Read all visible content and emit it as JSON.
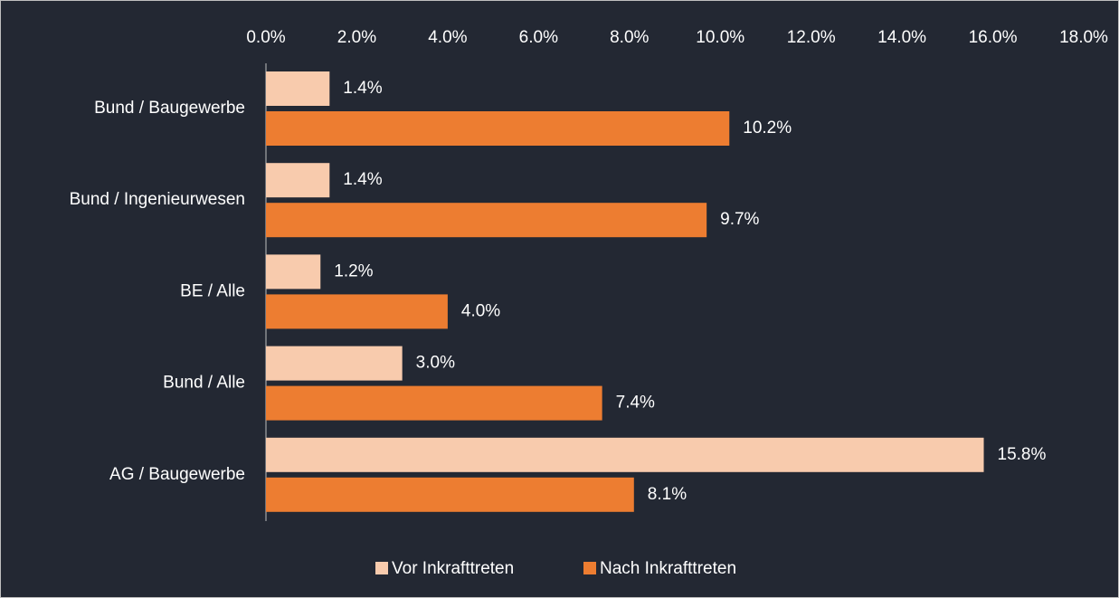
{
  "chart_data": {
    "type": "bar",
    "orientation": "horizontal",
    "categories": [
      "Bund / Baugewerbe",
      "Bund / Ingenieurwesen",
      "BE / Alle",
      "Bund / Alle",
      "AG / Baugewerbe"
    ],
    "series": [
      {
        "name": "Vor Inkrafttreten",
        "color": "#f8cbad",
        "values": [
          1.4,
          1.4,
          1.2,
          3.0,
          15.8
        ],
        "value_labels": [
          "1.4%",
          "1.4%",
          "1.2%",
          "3.0%",
          "15.8%"
        ]
      },
      {
        "name": "Nach Inkrafttreten",
        "color": "#ed7d31",
        "values": [
          10.2,
          9.7,
          4.0,
          7.4,
          8.1
        ],
        "value_labels": [
          "10.2%",
          "9.7%",
          "4.0%",
          "7.4%",
          "8.1%"
        ]
      }
    ],
    "xlim": [
      0,
      18
    ],
    "xticks": [
      {
        "value": 0,
        "label": "0.0%"
      },
      {
        "value": 2,
        "label": "2.0%"
      },
      {
        "value": 4,
        "label": "4.0%"
      },
      {
        "value": 6,
        "label": "6.0%"
      },
      {
        "value": 8,
        "label": "8.0%"
      },
      {
        "value": 10,
        "label": "10.0%"
      },
      {
        "value": 12,
        "label": "12.0%"
      },
      {
        "value": 14,
        "label": "14.0%"
      },
      {
        "value": 16,
        "label": "16.0%"
      },
      {
        "value": 18,
        "label": "18.0%"
      }
    ],
    "grid": false,
    "legend": "bottom"
  }
}
